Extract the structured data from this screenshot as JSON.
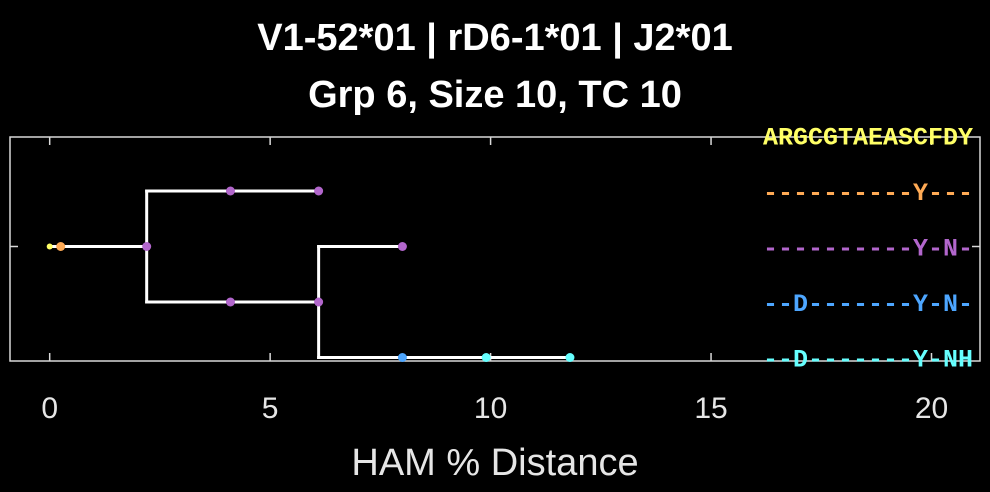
{
  "title_line1": "V1-52*01 | rD6-1*01 | J2*01",
  "title_line2": "Grp 6, Size 10, TC 10",
  "chart_data": {
    "type": "tree",
    "xlabel": "HAM % Distance",
    "xlim": [
      -0.9,
      21.1
    ],
    "xticks": [
      0,
      5,
      10,
      15,
      20
    ],
    "xtick_labels": [
      "0",
      "5",
      "10",
      "15",
      "20"
    ],
    "grid": false,
    "colors": {
      "background": "#000000",
      "axes": "#d9d9d9",
      "branch": "#ffffff",
      "germline": "#ffff66",
      "orange": "#ffaa55",
      "purple": "#b266cc",
      "blue": "#4da6ff",
      "cyan": "#66ffff"
    },
    "branches": [
      {
        "x1": 0.0,
        "y1": 2,
        "x2": 2.2,
        "y2": 2
      },
      {
        "x1": 2.2,
        "y1": 1,
        "x2": 2.2,
        "y2": 3
      },
      {
        "x1": 2.2,
        "y1": 1,
        "x2": 6.1,
        "y2": 1
      },
      {
        "x1": 2.2,
        "y1": 3,
        "x2": 6.1,
        "y2": 3
      },
      {
        "x1": 6.1,
        "y1": 2,
        "x2": 6.1,
        "y2": 4
      },
      {
        "x1": 6.1,
        "y1": 2,
        "x2": 8.0,
        "y2": 2
      },
      {
        "x1": 6.1,
        "y1": 4,
        "x2": 11.8,
        "y2": 4
      }
    ],
    "nodes": [
      {
        "x": 0.0,
        "y": 2,
        "color": "germline"
      },
      {
        "x": 0.25,
        "y": 2,
        "color": "orange"
      },
      {
        "x": 2.2,
        "y": 2,
        "color": "purple"
      },
      {
        "x": 4.1,
        "y": 1,
        "color": "purple"
      },
      {
        "x": 6.1,
        "y": 1,
        "color": "purple"
      },
      {
        "x": 4.1,
        "y": 3,
        "color": "purple"
      },
      {
        "x": 6.1,
        "y": 3,
        "color": "purple"
      },
      {
        "x": 8.0,
        "y": 2,
        "color": "purple"
      },
      {
        "x": 8.0,
        "y": 4,
        "color": "blue"
      },
      {
        "x": 9.9,
        "y": 4,
        "color": "cyan"
      },
      {
        "x": 11.8,
        "y": 4,
        "color": "cyan"
      }
    ],
    "sequences": [
      {
        "text": "ARGCGTAEASCFDY",
        "color": "germline"
      },
      {
        "text": "----------Y---",
        "color": "orange"
      },
      {
        "text": "----------Y-N-",
        "color": "purple"
      },
      {
        "text": "--D-------Y-N-",
        "color": "blue"
      },
      {
        "text": "--D-------Y-NH",
        "color": "cyan"
      }
    ]
  }
}
